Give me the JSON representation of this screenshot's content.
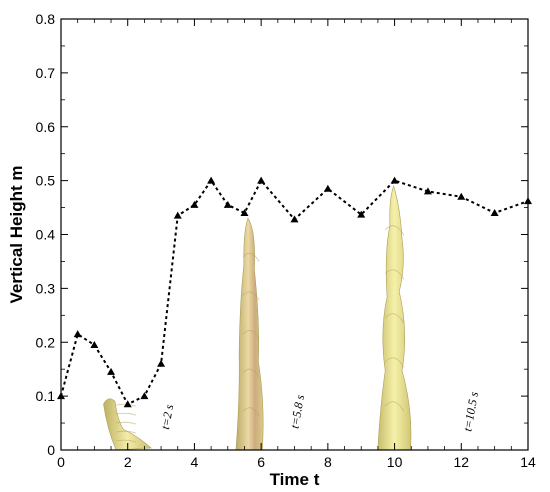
{
  "chart_data": {
    "type": "line",
    "title": "",
    "xlabel": "Time t",
    "ylabel": "Vertical Height m",
    "xlim": [
      0,
      14
    ],
    "ylim": [
      0,
      0.8
    ],
    "xticks": [
      "0",
      "2",
      "4",
      "6",
      "8",
      "10",
      "12",
      "14"
    ],
    "yticks": [
      "0",
      "0.1",
      "0.2",
      "0.3",
      "0.4",
      "0.5",
      "0.6",
      "0.7",
      "0.8"
    ],
    "grid": false,
    "series": [
      {
        "line_style": "dotted",
        "marker": "triangle",
        "color": "#000000",
        "x": [
          0,
          0.5,
          1,
          1.5,
          2,
          2.5,
          3,
          3.5,
          4,
          4.5,
          5,
          5.5,
          6,
          7,
          8,
          9,
          10,
          11,
          12,
          13,
          14
        ],
        "y": [
          0.1,
          0.215,
          0.195,
          0.145,
          0.085,
          0.1,
          0.16,
          0.435,
          0.455,
          0.5,
          0.455,
          0.44,
          0.5,
          0.428,
          0.485,
          0.437,
          0.5,
          0.48,
          0.47,
          0.44,
          0.462
        ]
      }
    ],
    "annotations": [
      {
        "text": "t=2 s",
        "x": 3.3,
        "y": 0.06
      },
      {
        "text": "t=5.8 s",
        "x": 7.2,
        "y": 0.07
      },
      {
        "text": "t=10.5 s",
        "x": 12.4,
        "y": 0.07
      }
    ],
    "inset_images": [
      {
        "name": "vortex-shape-t2",
        "color": "#e6dc8c",
        "x_range": [
          1.2,
          2.7
        ],
        "y_range": [
          0,
          0.1
        ]
      },
      {
        "name": "vortex-shape-t5.8",
        "color": "#e0cc88",
        "x_range": [
          5.1,
          6.3
        ],
        "y_range": [
          0,
          0.43
        ]
      },
      {
        "name": "vortex-shape-t10.5",
        "color": "#ece68e",
        "x_range": [
          9.3,
          10.7
        ],
        "y_range": [
          0,
          0.49
        ]
      }
    ]
  }
}
